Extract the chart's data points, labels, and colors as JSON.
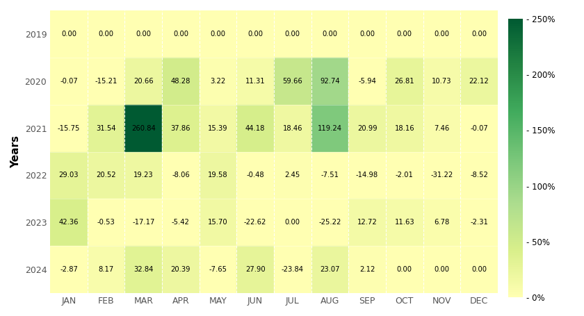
{
  "years": [
    2019,
    2020,
    2021,
    2022,
    2023,
    2024
  ],
  "months": [
    "JAN",
    "FEB",
    "MAR",
    "APR",
    "MAY",
    "JUN",
    "JUL",
    "AUG",
    "SEP",
    "OCT",
    "NOV",
    "DEC"
  ],
  "values": [
    [
      0.0,
      0.0,
      0.0,
      0.0,
      0.0,
      0.0,
      0.0,
      0.0,
      0.0,
      0.0,
      0.0,
      0.0
    ],
    [
      -0.07,
      -15.21,
      20.66,
      48.28,
      3.22,
      11.31,
      59.66,
      92.74,
      -5.94,
      26.81,
      10.73,
      22.12
    ],
    [
      -15.75,
      31.54,
      260.84,
      37.86,
      15.39,
      44.18,
      18.46,
      119.24,
      20.99,
      18.16,
      7.46,
      -0.07
    ],
    [
      29.03,
      20.52,
      19.23,
      -8.06,
      19.58,
      -0.48,
      2.45,
      -7.51,
      -14.98,
      -2.01,
      -31.22,
      -8.52
    ],
    [
      42.36,
      -0.53,
      -17.17,
      -5.42,
      15.7,
      -22.62,
      0.0,
      -25.22,
      12.72,
      11.63,
      6.78,
      -2.31
    ],
    [
      -2.87,
      8.17,
      32.84,
      20.39,
      -7.65,
      27.9,
      -23.84,
      23.07,
      2.12,
      0.0,
      0.0,
      0.0
    ]
  ],
  "cell_labels": [
    [
      "0.00",
      "0.00",
      "0.00",
      "0.00",
      "0.00",
      "0.00",
      "0.00",
      "0.00",
      "0.00",
      "0.00",
      "0.00",
      "0.00"
    ],
    [
      "-0.07",
      "-15.21",
      "20.66",
      "48.28",
      "3.22",
      "11.31",
      "59.66",
      "92.74",
      "-5.94",
      "26.81",
      "10.73",
      "22.12"
    ],
    [
      "-15.75",
      "31.54",
      "260.84",
      "37.86",
      "15.39",
      "44.18",
      "18.46",
      "119.24",
      "20.99",
      "18.16",
      "7.46",
      "-0.07"
    ],
    [
      "29.03",
      "20.52",
      "19.23",
      "-8.06",
      "19.58",
      "-0.48",
      "2.45",
      "-7.51",
      "-14.98",
      "-2.01",
      "-31.22",
      "-8.52"
    ],
    [
      "42.36",
      "-0.53",
      "-17.17",
      "-5.42",
      "15.70",
      "-22.62",
      "0.00",
      "-25.22",
      "12.72",
      "11.63",
      "6.78",
      "-2.31"
    ],
    [
      "-2.87",
      "8.17",
      "32.84",
      "20.39",
      "-7.65",
      "27.90",
      "-23.84",
      "23.07",
      "2.12",
      "0.00",
      "0.00",
      "0.00"
    ]
  ],
  "colorbar_ticks": [
    0,
    50,
    100,
    150,
    200,
    250
  ],
  "colorbar_labels": [
    "- 0%",
    "- 50%",
    "- 100%",
    "- 150%",
    "- 200%",
    "- 250%"
  ],
  "vmin": 0,
  "vmax": 250,
  "ylabel": "Years",
  "text_fontsize": 7.2,
  "year_fontsize": 9,
  "month_fontsize": 9,
  "cmap_colors": [
    "#ffffb2",
    "#d9ef8b",
    "#addd8e",
    "#78c679",
    "#41ab5d",
    "#238443",
    "#005a32"
  ],
  "background_color": "#ffffff",
  "grid_color": "#ffffff"
}
